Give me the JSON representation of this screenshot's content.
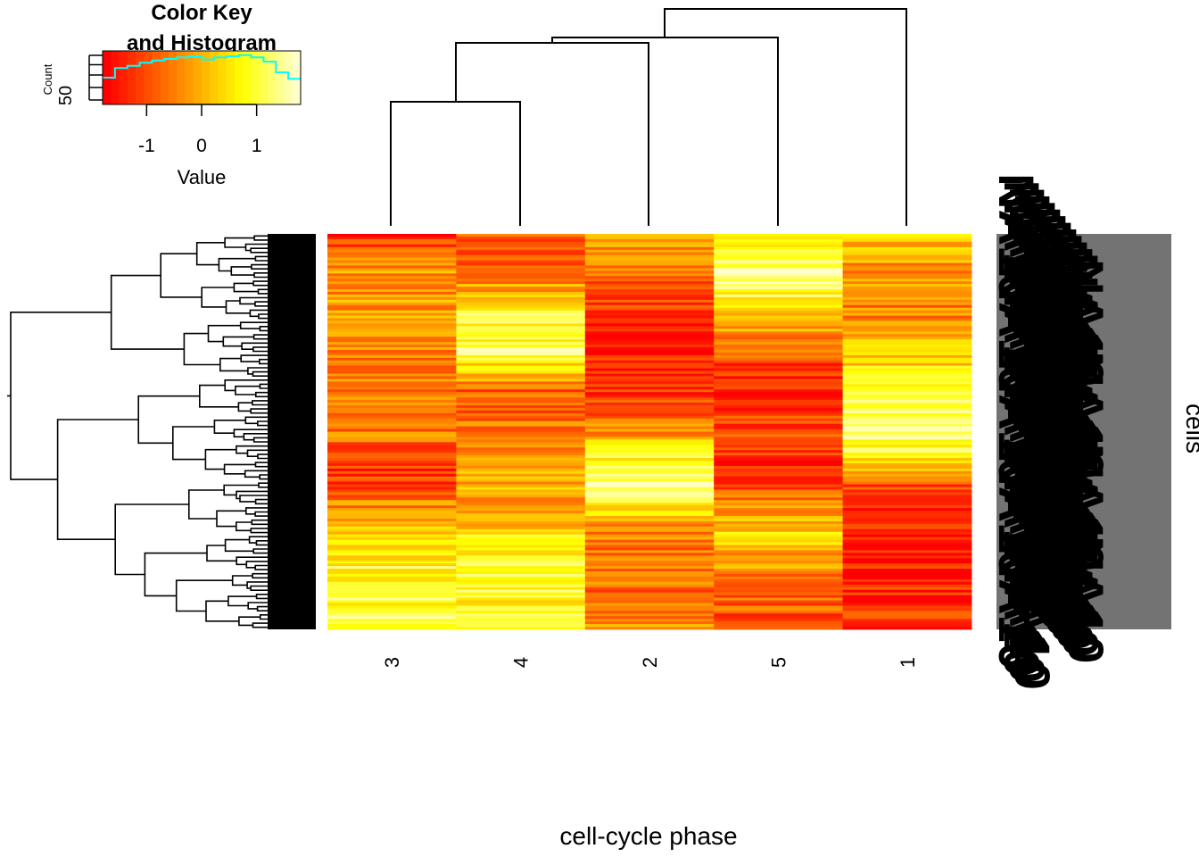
{
  "chart_data": {
    "type": "heatmap",
    "title": "",
    "xlabel": "cell-cycle phase",
    "ylabel": "cells",
    "columns": [
      "3",
      "4",
      "2",
      "5",
      "1"
    ],
    "row_label_example": "NA10",
    "key": {
      "title_line1": "Color Key",
      "title_line2": "and Histogram",
      "xlabel": "Value",
      "ylabel": "Count",
      "x_ticks": [
        "-1",
        "0",
        "1"
      ],
      "y_tick": "50",
      "range": [
        -1.8,
        1.8
      ],
      "histogram": [
        50,
        68,
        72,
        78,
        82,
        85,
        88,
        90,
        84,
        88,
        90,
        92,
        88,
        80,
        60,
        48
      ],
      "histogram_color": "#00ffff"
    },
    "colors": [
      "#ff0000",
      "#ff3300",
      "#ff6600",
      "#ff9900",
      "#ffcc00",
      "#ffff00",
      "#ffff66",
      "#ffffcc"
    ],
    "column_profiles": [
      [
        [
          0.0,
          0.15
        ],
        [
          0.1,
          0.45
        ],
        [
          0.25,
          0.4
        ],
        [
          0.5,
          0.35
        ],
        [
          0.6,
          0.1
        ],
        [
          0.75,
          0.6
        ],
        [
          0.85,
          0.75
        ],
        [
          1.0,
          0.8
        ]
      ],
      [
        [
          0.0,
          0.25
        ],
        [
          0.1,
          0.3
        ],
        [
          0.2,
          0.75
        ],
        [
          0.3,
          0.85
        ],
        [
          0.4,
          0.25
        ],
        [
          0.55,
          0.4
        ],
        [
          0.7,
          0.5
        ],
        [
          0.85,
          0.8
        ],
        [
          1.0,
          0.7
        ]
      ],
      [
        [
          0.0,
          0.45
        ],
        [
          0.15,
          0.15
        ],
        [
          0.3,
          0.05
        ],
        [
          0.45,
          0.2
        ],
        [
          0.57,
          0.75
        ],
        [
          0.65,
          0.95
        ],
        [
          0.75,
          0.35
        ],
        [
          0.9,
          0.3
        ],
        [
          1.0,
          0.4
        ]
      ],
      [
        [
          0.0,
          0.75
        ],
        [
          0.1,
          0.9
        ],
        [
          0.2,
          0.6
        ],
        [
          0.35,
          0.1
        ],
        [
          0.5,
          0.2
        ],
        [
          0.6,
          0.05
        ],
        [
          0.75,
          0.6
        ],
        [
          0.9,
          0.3
        ],
        [
          1.0,
          0.2
        ]
      ],
      [
        [
          0.0,
          0.6
        ],
        [
          0.1,
          0.4
        ],
        [
          0.2,
          0.35
        ],
        [
          0.35,
          0.65
        ],
        [
          0.45,
          0.85
        ],
        [
          0.55,
          0.8
        ],
        [
          0.65,
          0.15
        ],
        [
          0.8,
          0.05
        ],
        [
          1.0,
          0.15
        ]
      ]
    ]
  }
}
